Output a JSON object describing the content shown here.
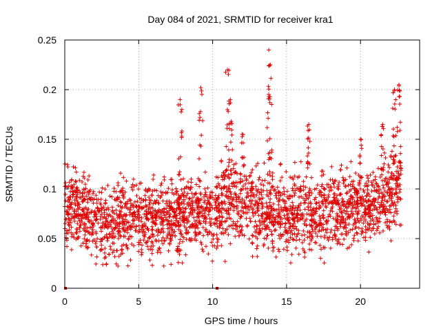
{
  "chart_data": {
    "type": "scatter",
    "title": "Day 084 of 2021, SRMTID for receiver kra1",
    "xlabel": "GPS time / hours",
    "ylabel": "SRMTID / TECUs",
    "xlim": [
      0,
      24
    ],
    "ylim": [
      0,
      0.25
    ],
    "xticks": [
      0,
      5,
      10,
      15,
      20
    ],
    "xtick_labels": [
      "0",
      "5",
      "10",
      "15",
      "20"
    ],
    "yticks": [
      0,
      0.05,
      0.1,
      0.15,
      0.2,
      0.25
    ],
    "ytick_labels": [
      "0",
      "0.05",
      "0.1",
      "0.15",
      "0.2",
      "0.25"
    ],
    "grid": true,
    "marker": "+",
    "color": "#e00000",
    "series": [
      {
        "name": "SRMTID",
        "x_range": [
          0,
          22.75
        ],
        "baseline_by_hour": [
          [
            0,
            0.085
          ],
          [
            1,
            0.08
          ],
          [
            2,
            0.068
          ],
          [
            3,
            0.062
          ],
          [
            4,
            0.07
          ],
          [
            5,
            0.075
          ],
          [
            6,
            0.068
          ],
          [
            7,
            0.07
          ],
          [
            8,
            0.075
          ],
          [
            9,
            0.078
          ],
          [
            10,
            0.075
          ],
          [
            11,
            0.085
          ],
          [
            12,
            0.09
          ],
          [
            13,
            0.085
          ],
          [
            14,
            0.075
          ],
          [
            15,
            0.072
          ],
          [
            16,
            0.075
          ],
          [
            17,
            0.072
          ],
          [
            18,
            0.08
          ],
          [
            19,
            0.082
          ],
          [
            20,
            0.08
          ],
          [
            21,
            0.085
          ],
          [
            22,
            0.095
          ],
          [
            22.75,
            0.11
          ]
        ],
        "spread": 0.025,
        "spikes": [
          {
            "x": 7.8,
            "y": 0.19
          },
          {
            "x": 9.2,
            "y": 0.202
          },
          {
            "x": 11.0,
            "y": 0.22
          },
          {
            "x": 11.2,
            "y": 0.19
          },
          {
            "x": 12.0,
            "y": 0.155
          },
          {
            "x": 13.8,
            "y": 0.24
          },
          {
            "x": 13.9,
            "y": 0.225
          },
          {
            "x": 16.5,
            "y": 0.165
          },
          {
            "x": 20.0,
            "y": 0.15
          },
          {
            "x": 21.5,
            "y": 0.165
          },
          {
            "x": 22.3,
            "y": 0.2
          },
          {
            "x": 22.6,
            "y": 0.205
          }
        ],
        "zero_points": [
          {
            "x": 0.05,
            "y": 0
          },
          {
            "x": 10.3,
            "y": 0
          }
        ]
      }
    ]
  }
}
